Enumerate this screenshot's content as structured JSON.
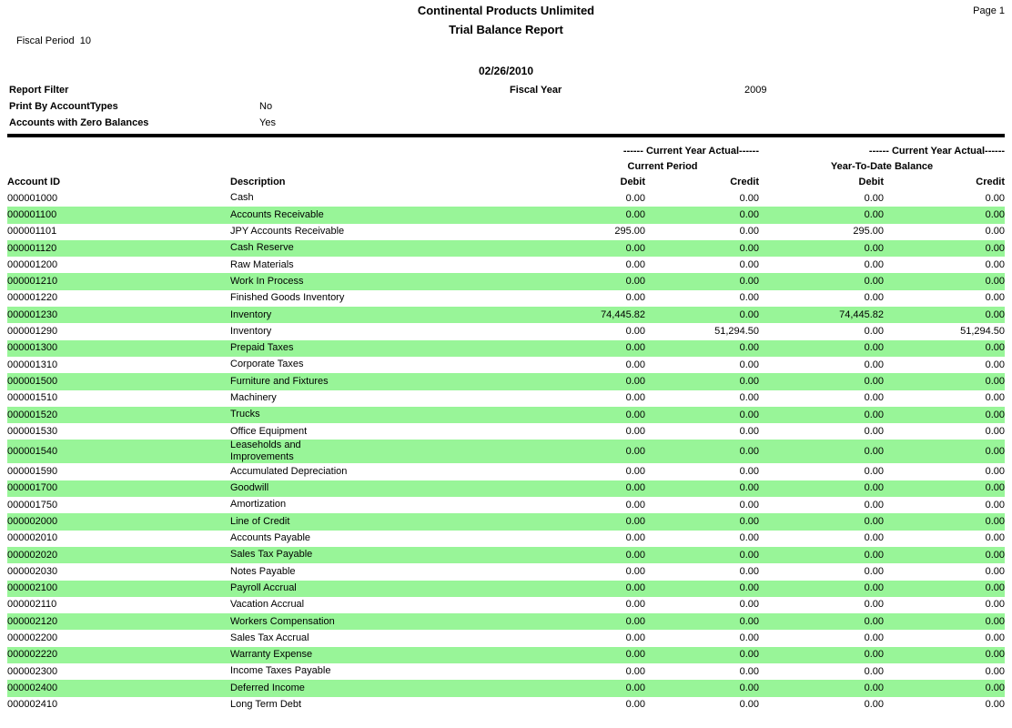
{
  "colors": {
    "row_highlight": "#98F598",
    "rule": "#000000"
  },
  "header": {
    "company_name": "Continental Products Unlimited",
    "report_title": "Trial Balance Report",
    "page_label": "Page 1",
    "fiscal_period_label": "Fiscal Period",
    "fiscal_period_value": "10",
    "report_date": "02/26/2010",
    "report_filter_label": "Report Filter",
    "fiscal_year_label": "Fiscal Year",
    "fiscal_year_value": "2009",
    "filters": [
      {
        "label": "Print By AccountTypes",
        "value": "No"
      },
      {
        "label": "Accounts with Zero Balances",
        "value": "Yes"
      }
    ]
  },
  "table": {
    "group_header_current": "------ Current Year Actual------",
    "group_header_ytd": "------ Current Year Actual------",
    "sub_header_current": "Current Period",
    "sub_header_ytd": "Year-To-Date Balance",
    "columns": {
      "account_id": "Account ID",
      "description": "Description",
      "debit": "Debit",
      "credit": "Credit"
    },
    "rows": [
      {
        "account_id": "000001000",
        "description": "Cash",
        "debit_current": "0.00",
        "credit_current": "0.00",
        "debit_ytd": "0.00",
        "credit_ytd": "0.00",
        "highlighted": false
      },
      {
        "account_id": "000001100",
        "description": "Accounts Receivable",
        "debit_current": "0.00",
        "credit_current": "0.00",
        "debit_ytd": "0.00",
        "credit_ytd": "0.00",
        "highlighted": true
      },
      {
        "account_id": "000001101",
        "description": "JPY Accounts Receivable",
        "debit_current": "295.00",
        "credit_current": "0.00",
        "debit_ytd": "295.00",
        "credit_ytd": "0.00",
        "highlighted": false
      },
      {
        "account_id": "000001120",
        "description": "Cash Reserve",
        "debit_current": "0.00",
        "credit_current": "0.00",
        "debit_ytd": "0.00",
        "credit_ytd": "0.00",
        "highlighted": true
      },
      {
        "account_id": "000001200",
        "description": "Raw Materials",
        "debit_current": "0.00",
        "credit_current": "0.00",
        "debit_ytd": "0.00",
        "credit_ytd": "0.00",
        "highlighted": false
      },
      {
        "account_id": "000001210",
        "description": "Work In Process",
        "debit_current": "0.00",
        "credit_current": "0.00",
        "debit_ytd": "0.00",
        "credit_ytd": "0.00",
        "highlighted": true
      },
      {
        "account_id": "000001220",
        "description": "Finished Goods Inventory",
        "debit_current": "0.00",
        "credit_current": "0.00",
        "debit_ytd": "0.00",
        "credit_ytd": "0.00",
        "highlighted": false
      },
      {
        "account_id": "000001230",
        "description": "Inventory",
        "debit_current": "74,445.82",
        "credit_current": "0.00",
        "debit_ytd": "74,445.82",
        "credit_ytd": "0.00",
        "highlighted": true
      },
      {
        "account_id": "000001290",
        "description": "Inventory",
        "debit_current": "0.00",
        "credit_current": "51,294.50",
        "debit_ytd": "0.00",
        "credit_ytd": "51,294.50",
        "highlighted": false
      },
      {
        "account_id": "000001300",
        "description": "Prepaid Taxes",
        "debit_current": "0.00",
        "credit_current": "0.00",
        "debit_ytd": "0.00",
        "credit_ytd": "0.00",
        "highlighted": true
      },
      {
        "account_id": "000001310",
        "description": "Corporate Taxes",
        "debit_current": "0.00",
        "credit_current": "0.00",
        "debit_ytd": "0.00",
        "credit_ytd": "0.00",
        "highlighted": false
      },
      {
        "account_id": "000001500",
        "description": "Furniture and Fixtures",
        "debit_current": "0.00",
        "credit_current": "0.00",
        "debit_ytd": "0.00",
        "credit_ytd": "0.00",
        "highlighted": true
      },
      {
        "account_id": "000001510",
        "description": "Machinery",
        "debit_current": "0.00",
        "credit_current": "0.00",
        "debit_ytd": "0.00",
        "credit_ytd": "0.00",
        "highlighted": false
      },
      {
        "account_id": "000001520",
        "description": "Trucks",
        "debit_current": "0.00",
        "credit_current": "0.00",
        "debit_ytd": "0.00",
        "credit_ytd": "0.00",
        "highlighted": true
      },
      {
        "account_id": "000001530",
        "description": "Office Equipment",
        "debit_current": "0.00",
        "credit_current": "0.00",
        "debit_ytd": "0.00",
        "credit_ytd": "0.00",
        "highlighted": false
      },
      {
        "account_id": "000001540",
        "description": "Leaseholds and Improvements",
        "debit_current": "0.00",
        "credit_current": "0.00",
        "debit_ytd": "0.00",
        "credit_ytd": "0.00",
        "highlighted": true
      },
      {
        "account_id": "000001590",
        "description": "Accumulated Depreciation",
        "debit_current": "0.00",
        "credit_current": "0.00",
        "debit_ytd": "0.00",
        "credit_ytd": "0.00",
        "highlighted": false
      },
      {
        "account_id": "000001700",
        "description": "Goodwill",
        "debit_current": "0.00",
        "credit_current": "0.00",
        "debit_ytd": "0.00",
        "credit_ytd": "0.00",
        "highlighted": true
      },
      {
        "account_id": "000001750",
        "description": "Amortization",
        "debit_current": "0.00",
        "credit_current": "0.00",
        "debit_ytd": "0.00",
        "credit_ytd": "0.00",
        "highlighted": false
      },
      {
        "account_id": "000002000",
        "description": "Line of Credit",
        "debit_current": "0.00",
        "credit_current": "0.00",
        "debit_ytd": "0.00",
        "credit_ytd": "0.00",
        "highlighted": true
      },
      {
        "account_id": "000002010",
        "description": "Accounts Payable",
        "debit_current": "0.00",
        "credit_current": "0.00",
        "debit_ytd": "0.00",
        "credit_ytd": "0.00",
        "highlighted": false
      },
      {
        "account_id": "000002020",
        "description": "Sales Tax Payable",
        "debit_current": "0.00",
        "credit_current": "0.00",
        "debit_ytd": "0.00",
        "credit_ytd": "0.00",
        "highlighted": true
      },
      {
        "account_id": "000002030",
        "description": "Notes Payable",
        "debit_current": "0.00",
        "credit_current": "0.00",
        "debit_ytd": "0.00",
        "credit_ytd": "0.00",
        "highlighted": false
      },
      {
        "account_id": "000002100",
        "description": "Payroll Accrual",
        "debit_current": "0.00",
        "credit_current": "0.00",
        "debit_ytd": "0.00",
        "credit_ytd": "0.00",
        "highlighted": true
      },
      {
        "account_id": "000002110",
        "description": "Vacation Accrual",
        "debit_current": "0.00",
        "credit_current": "0.00",
        "debit_ytd": "0.00",
        "credit_ytd": "0.00",
        "highlighted": false
      },
      {
        "account_id": "000002120",
        "description": "Workers Compensation",
        "debit_current": "0.00",
        "credit_current": "0.00",
        "debit_ytd": "0.00",
        "credit_ytd": "0.00",
        "highlighted": true
      },
      {
        "account_id": "000002200",
        "description": "Sales Tax Accrual",
        "debit_current": "0.00",
        "credit_current": "0.00",
        "debit_ytd": "0.00",
        "credit_ytd": "0.00",
        "highlighted": false
      },
      {
        "account_id": "000002220",
        "description": "Warranty Expense",
        "debit_current": "0.00",
        "credit_current": "0.00",
        "debit_ytd": "0.00",
        "credit_ytd": "0.00",
        "highlighted": true
      },
      {
        "account_id": "000002300",
        "description": "Income Taxes Payable",
        "debit_current": "0.00",
        "credit_current": "0.00",
        "debit_ytd": "0.00",
        "credit_ytd": "0.00",
        "highlighted": false
      },
      {
        "account_id": "000002400",
        "description": "Deferred Income",
        "debit_current": "0.00",
        "credit_current": "0.00",
        "debit_ytd": "0.00",
        "credit_ytd": "0.00",
        "highlighted": true
      },
      {
        "account_id": "000002410",
        "description": "Long Term Debt",
        "debit_current": "0.00",
        "credit_current": "0.00",
        "debit_ytd": "0.00",
        "credit_ytd": "0.00",
        "highlighted": false
      }
    ]
  }
}
